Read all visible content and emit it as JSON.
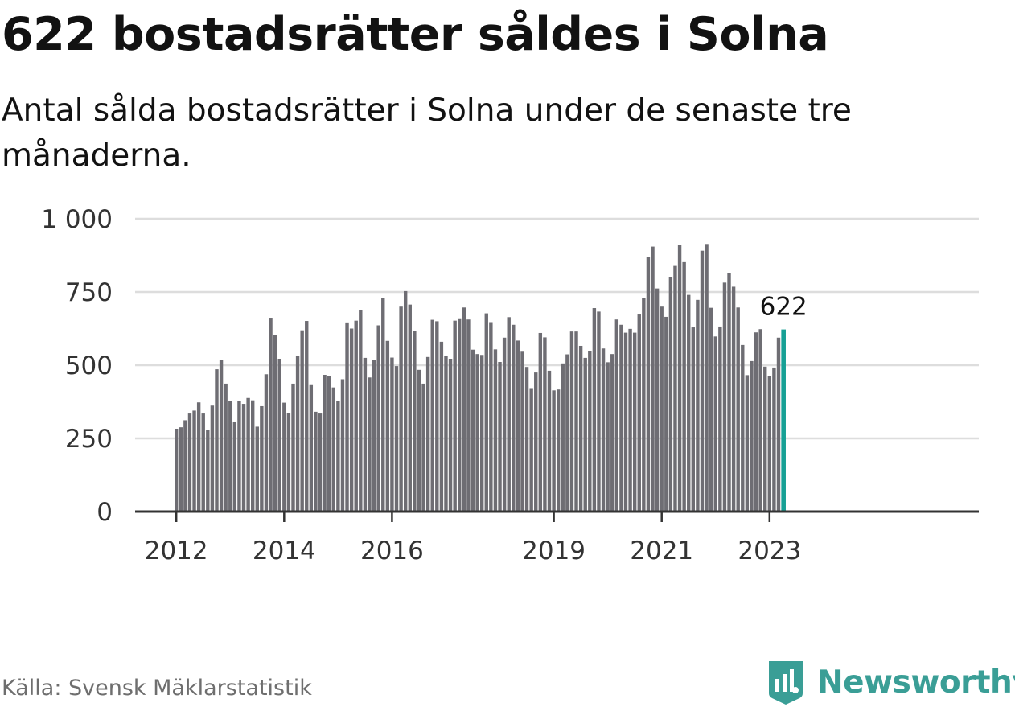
{
  "title": "622 bostadsrätter såldes i Solna",
  "subtitle": "Antal sålda bostadsrätter i Solna under de senaste tre månaderna.",
  "source": "Källa: Svensk Mäklarstatistik",
  "brand": {
    "name": "Newsworthy",
    "icon": "newsworthy-logo-icon",
    "color": "#3a9e96"
  },
  "chart_data": {
    "type": "bar",
    "title": "622 bostadsrätter såldes i Solna",
    "subtitle": "Antal sålda bostadsrätter i Solna under de senaste tre månaderna.",
    "xlabel": "",
    "ylabel": "",
    "ylim": [
      0,
      1000
    ],
    "yticks": [
      0,
      250,
      500,
      750,
      1000
    ],
    "ytick_labels": [
      "0",
      "250",
      "500",
      "750",
      "1 000"
    ],
    "xtick_labels": [
      "2012",
      "2014",
      "2016",
      "2019",
      "2021",
      "2023"
    ],
    "xtick_indices": [
      0,
      24,
      48,
      84,
      108,
      132
    ],
    "grid": true,
    "bar_color": "#6e6d73",
    "highlight_color": "#16a095",
    "highlight_index": 135,
    "highlight_label": "622",
    "values": [
      283,
      288,
      312,
      335,
      345,
      373,
      335,
      280,
      362,
      486,
      517,
      437,
      377,
      305,
      379,
      368,
      388,
      380,
      290,
      360,
      469,
      662,
      604,
      522,
      372,
      336,
      437,
      533,
      619,
      651,
      432,
      341,
      335,
      467,
      464,
      424,
      377,
      452,
      646,
      625,
      652,
      688,
      525,
      458,
      517,
      636,
      730,
      583,
      526,
      497,
      700,
      753,
      707,
      616,
      484,
      437,
      528,
      655,
      650,
      580,
      533,
      522,
      652,
      660,
      697,
      656,
      553,
      538,
      535,
      677,
      647,
      554,
      511,
      594,
      664,
      638,
      584,
      546,
      494,
      419,
      475,
      610,
      595,
      481,
      414,
      417,
      506,
      537,
      615,
      615,
      566,
      525,
      547,
      695,
      683,
      557,
      510,
      538,
      656,
      638,
      611,
      624,
      611,
      673,
      730,
      870,
      905,
      762,
      700,
      665,
      800,
      839,
      912,
      852,
      740,
      629,
      723,
      891,
      914,
      696,
      598,
      632,
      782,
      815,
      768,
      697,
      569,
      466,
      514,
      612,
      623,
      495,
      463,
      492,
      594,
      622
    ]
  }
}
